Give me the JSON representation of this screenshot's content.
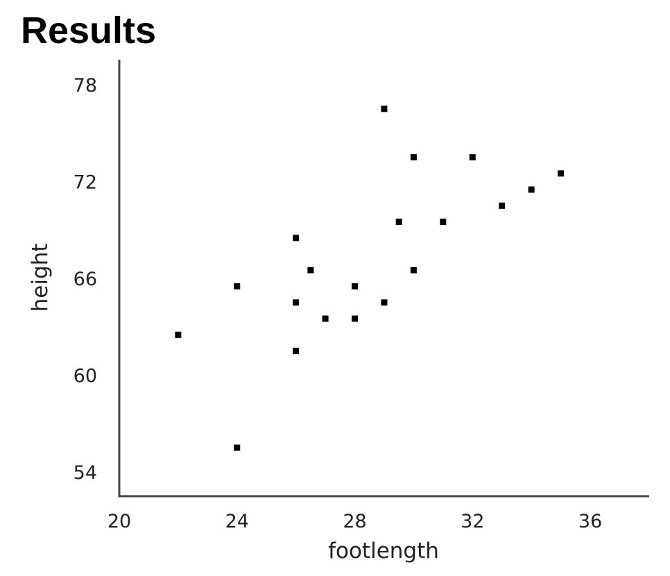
{
  "header": {
    "title": "Results"
  },
  "chart_data": {
    "type": "scatter",
    "title": "",
    "xlabel": "footlength",
    "ylabel": "height",
    "xlim": [
      20,
      38
    ],
    "ylim": [
      52.5,
      79
    ],
    "xticks": [
      20,
      24,
      28,
      32,
      36
    ],
    "yticks": [
      54,
      60,
      66,
      72,
      78
    ],
    "grid": false,
    "legend": "none",
    "point_color": "#000000",
    "points": [
      {
        "x": 22,
        "y": 62.5
      },
      {
        "x": 24,
        "y": 55.5
      },
      {
        "x": 24,
        "y": 65.5
      },
      {
        "x": 26,
        "y": 61.5
      },
      {
        "x": 26,
        "y": 64.5
      },
      {
        "x": 26,
        "y": 68.5
      },
      {
        "x": 26.5,
        "y": 66.5
      },
      {
        "x": 27,
        "y": 63.5
      },
      {
        "x": 28,
        "y": 63.5
      },
      {
        "x": 28,
        "y": 65.5
      },
      {
        "x": 29,
        "y": 64.5
      },
      {
        "x": 29,
        "y": 76.5
      },
      {
        "x": 29.5,
        "y": 69.5
      },
      {
        "x": 30,
        "y": 66.5
      },
      {
        "x": 30,
        "y": 73.5
      },
      {
        "x": 31,
        "y": 69.5
      },
      {
        "x": 32,
        "y": 73.5
      },
      {
        "x": 33,
        "y": 70.5
      },
      {
        "x": 34,
        "y": 71.5
      },
      {
        "x": 35,
        "y": 72.5
      }
    ]
  }
}
